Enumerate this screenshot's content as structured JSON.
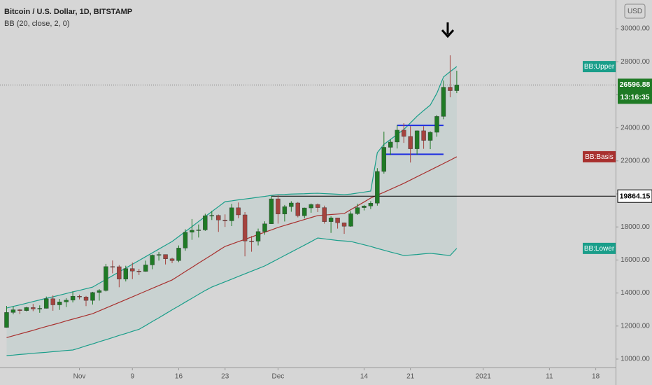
{
  "chart_data": {
    "type": "candlestick",
    "title": "Bitcoin / U.S. Dollar, 1D, BITSTAMP",
    "subtitle": "BB (20, close, 2, 0)",
    "currency": "USD",
    "countdown": "13:16:35",
    "x": [
      "2020-10-21",
      "2020-10-22",
      "2020-10-23",
      "2020-10-24",
      "2020-10-25",
      "2020-10-26",
      "2020-10-27",
      "2020-10-28",
      "2020-10-29",
      "2020-10-30",
      "2020-10-31",
      "2020-11-01",
      "2020-11-02",
      "2020-11-03",
      "2020-11-04",
      "2020-11-05",
      "2020-11-06",
      "2020-11-07",
      "2020-11-08",
      "2020-11-09",
      "2020-11-10",
      "2020-11-11",
      "2020-11-12",
      "2020-11-13",
      "2020-11-14",
      "2020-11-15",
      "2020-11-16",
      "2020-11-17",
      "2020-11-18",
      "2020-11-19",
      "2020-11-20",
      "2020-11-21",
      "2020-11-22",
      "2020-11-23",
      "2020-11-24",
      "2020-11-25",
      "2020-11-26",
      "2020-11-27",
      "2020-11-28",
      "2020-11-29",
      "2020-11-30",
      "2020-12-01",
      "2020-12-02",
      "2020-12-03",
      "2020-12-04",
      "2020-12-05",
      "2020-12-06",
      "2020-12-07",
      "2020-12-08",
      "2020-12-09",
      "2020-12-10",
      "2020-12-11",
      "2020-12-12",
      "2020-12-13",
      "2020-12-14",
      "2020-12-15",
      "2020-12-16",
      "2020-12-17",
      "2020-12-18",
      "2020-12-19",
      "2020-12-20",
      "2020-12-21",
      "2020-12-22",
      "2020-12-23",
      "2020-12-24",
      "2020-12-25",
      "2020-12-26",
      "2020-12-27",
      "2020-12-28"
    ],
    "open": [
      11916,
      12823,
      12986,
      12934,
      13119,
      13035,
      13072,
      13651,
      13282,
      13460,
      13566,
      13805,
      13758,
      13552,
      14031,
      14150,
      15600,
      15592,
      14840,
      15480,
      15330,
      15310,
      15700,
      16290,
      16330,
      16070,
      15960,
      16720,
      17680,
      17800,
      17820,
      18680,
      18700,
      18420,
      18370,
      19160,
      18730,
      17150,
      17140,
      17720,
      18190,
      19700,
      18780,
      19230,
      19450,
      18680,
      19150,
      19360,
      19170,
      18320,
      18550,
      18250,
      18040,
      18800,
      19170,
      19270,
      19440,
      21360,
      22820,
      23140,
      23860,
      23480,
      22730,
      23820,
      23240,
      23730,
      24690,
      26460,
      26250
    ],
    "high": [
      13217,
      13185,
      13027,
      13162,
      13339,
      13252,
      13786,
      13858,
      13643,
      13692,
      14100,
      13900,
      13823,
      14070,
      14235,
      15766,
      15969,
      15690,
      15650,
      15840,
      15460,
      15960,
      16330,
      16480,
      16330,
      16140,
      16880,
      17860,
      18480,
      18150,
      18800,
      18970,
      18750,
      18760,
      19400,
      19480,
      18900,
      17450,
      17900,
      18340,
      19860,
      19920,
      19330,
      19560,
      19510,
      19170,
      19420,
      19420,
      19290,
      18640,
      18560,
      18270,
      18950,
      19410,
      19330,
      19560,
      21560,
      23770,
      23290,
      24170,
      24280,
      24100,
      23840,
      24100,
      23790,
      24780,
      26870,
      28390,
      27460
    ],
    "low": [
      11900,
      12708,
      12726,
      12889,
      12902,
      12802,
      13061,
      12926,
      12979,
      13149,
      13429,
      13616,
      13207,
      13300,
      13539,
      14090,
      15192,
      14350,
      14700,
      14840,
      15090,
      15290,
      15440,
      15960,
      15730,
      15810,
      15870,
      16560,
      17220,
      17360,
      17760,
      18420,
      17700,
      18000,
      18050,
      18530,
      16220,
      16500,
      16880,
      17530,
      18180,
      18200,
      18330,
      18920,
      18580,
      18520,
      18860,
      18900,
      18200,
      17640,
      17900,
      17580,
      18010,
      18730,
      19000,
      19080,
      19290,
      21230,
      22350,
      22750,
      23090,
      21900,
      22360,
      22730,
      22710,
      23460,
      24520,
      25850,
      26100
    ],
    "close": [
      12823,
      12986,
      12934,
      13119,
      13035,
      13072,
      13651,
      13282,
      13460,
      13566,
      13805,
      13758,
      13552,
      14031,
      14150,
      15600,
      15592,
      14840,
      15480,
      15330,
      15310,
      15700,
      16290,
      16330,
      16070,
      15960,
      16720,
      17680,
      17800,
      17820,
      18680,
      18700,
      18420,
      18370,
      19160,
      18730,
      17150,
      17140,
      17720,
      18190,
      19700,
      18780,
      19230,
      19450,
      18680,
      19150,
      19360,
      19170,
      18320,
      18550,
      18250,
      18040,
      18800,
      19170,
      19270,
      19440,
      21360,
      22820,
      23140,
      23860,
      23480,
      22730,
      23820,
      23240,
      23730,
      24690,
      26460,
      26250,
      26596.88
    ],
    "up_color": "#1f7a25",
    "down_color": "#a5433e",
    "series": [
      {
        "name": "BB:Upper",
        "color": "#1a9e8a",
        "values": [
          13090,
          13190,
          13280,
          13380,
          13480,
          13580,
          13680,
          13770,
          13870,
          13970,
          14070,
          14160,
          14260,
          14360,
          14590,
          14820,
          15050,
          15280,
          15510,
          15740,
          15970,
          16200,
          16430,
          16660,
          16890,
          17120,
          17420,
          17720,
          18020,
          18330,
          18630,
          18930,
          19230,
          19530,
          19580,
          19640,
          19690,
          19740,
          19800,
          19850,
          19910,
          19960,
          19970,
          19990,
          20000,
          20010,
          20030,
          20040,
          20020,
          20000,
          19980,
          19960,
          19990,
          20050,
          20110,
          20170,
          22500,
          23000,
          23300,
          23600,
          23900,
          24300,
          24700,
          25050,
          25380,
          26100,
          27080,
          27400,
          27710
        ]
      },
      {
        "name": "BB:Basis",
        "color": "#a8302e",
        "values": [
          11300,
          11410,
          11520,
          11630,
          11740,
          11860,
          11970,
          12080,
          12190,
          12310,
          12420,
          12530,
          12640,
          12750,
          12920,
          13090,
          13260,
          13430,
          13600,
          13770,
          13940,
          14110,
          14280,
          14450,
          14620,
          14790,
          15040,
          15300,
          15550,
          15810,
          16060,
          16310,
          16570,
          16820,
          16960,
          17110,
          17250,
          17390,
          17540,
          17680,
          17820,
          17970,
          18090,
          18210,
          18330,
          18450,
          18570,
          18690,
          18720,
          18750,
          18780,
          18810,
          19050,
          19280,
          19510,
          19750,
          19930,
          20100,
          20280,
          20460,
          20640,
          20840,
          21040,
          21240,
          21440,
          21640,
          21840,
          22040,
          22250
        ]
      },
      {
        "name": "BB:Lower",
        "color": "#1a9e8a",
        "values": [
          10210,
          10240,
          10280,
          10310,
          10350,
          10380,
          10410,
          10450,
          10480,
          10520,
          10550,
          10670,
          10800,
          10920,
          11050,
          11170,
          11300,
          11430,
          11550,
          11680,
          11800,
          12030,
          12270,
          12500,
          12740,
          12980,
          13210,
          13450,
          13680,
          13920,
          14150,
          14360,
          14520,
          14680,
          14840,
          15000,
          15160,
          15320,
          15480,
          15640,
          15850,
          16060,
          16270,
          16480,
          16690,
          16900,
          17110,
          17330,
          17280,
          17230,
          17180,
          17150,
          17120,
          17020,
          16920,
          16820,
          16700,
          16590,
          16480,
          16380,
          16270,
          16300,
          16330,
          16370,
          16400,
          16360,
          16310,
          16270,
          16700
        ]
      }
    ],
    "band_fill": "rgba(38,166,154,0.07)",
    "hline": {
      "value": 19864.15,
      "from": "2020-11-30",
      "color": "#000000"
    },
    "levels": [
      {
        "value": 24150,
        "from": "2020-12-19",
        "to": "2020-12-26",
        "color": "#1f2fe0"
      },
      {
        "value": 22400,
        "from": "2020-12-17",
        "to": "2020-12-26",
        "color": "#1f2fe0"
      }
    ],
    "xlim": [
      "2020-10-20",
      "2021-01-21"
    ],
    "xticks": [
      {
        "value": "2020-11-01",
        "label": "Nov"
      },
      {
        "value": "2020-11-09",
        "label": "9"
      },
      {
        "value": "2020-11-16",
        "label": "16"
      },
      {
        "value": "2020-11-23",
        "label": "23"
      },
      {
        "value": "2020-12-01",
        "label": "Dec"
      },
      {
        "value": "2020-12-14",
        "label": "14"
      },
      {
        "value": "2020-12-21",
        "label": "21"
      },
      {
        "value": "2021-01-01",
        "label": "2021"
      },
      {
        "value": "2021-01-11",
        "label": "11"
      },
      {
        "value": "2021-01-18",
        "label": "18"
      }
    ],
    "ylim": [
      9490,
      31740
    ],
    "yticks": [
      {
        "value": 10000,
        "label": "10000.00"
      },
      {
        "value": 12000,
        "label": "12000.00"
      },
      {
        "value": 14000,
        "label": "14000.00"
      },
      {
        "value": 16000,
        "label": "16000.00"
      },
      {
        "value": 18000,
        "label": "18000.00"
      },
      {
        "value": 20000,
        "label": "20000.00"
      },
      {
        "value": 22000,
        "label": "22000.00"
      },
      {
        "value": 24000,
        "label": "24000.00"
      },
      {
        "value": 26000,
        "label": "26000.00"
      },
      {
        "value": 28000,
        "label": "28000.00"
      },
      {
        "value": 30000,
        "label": "30000.00"
      }
    ]
  }
}
